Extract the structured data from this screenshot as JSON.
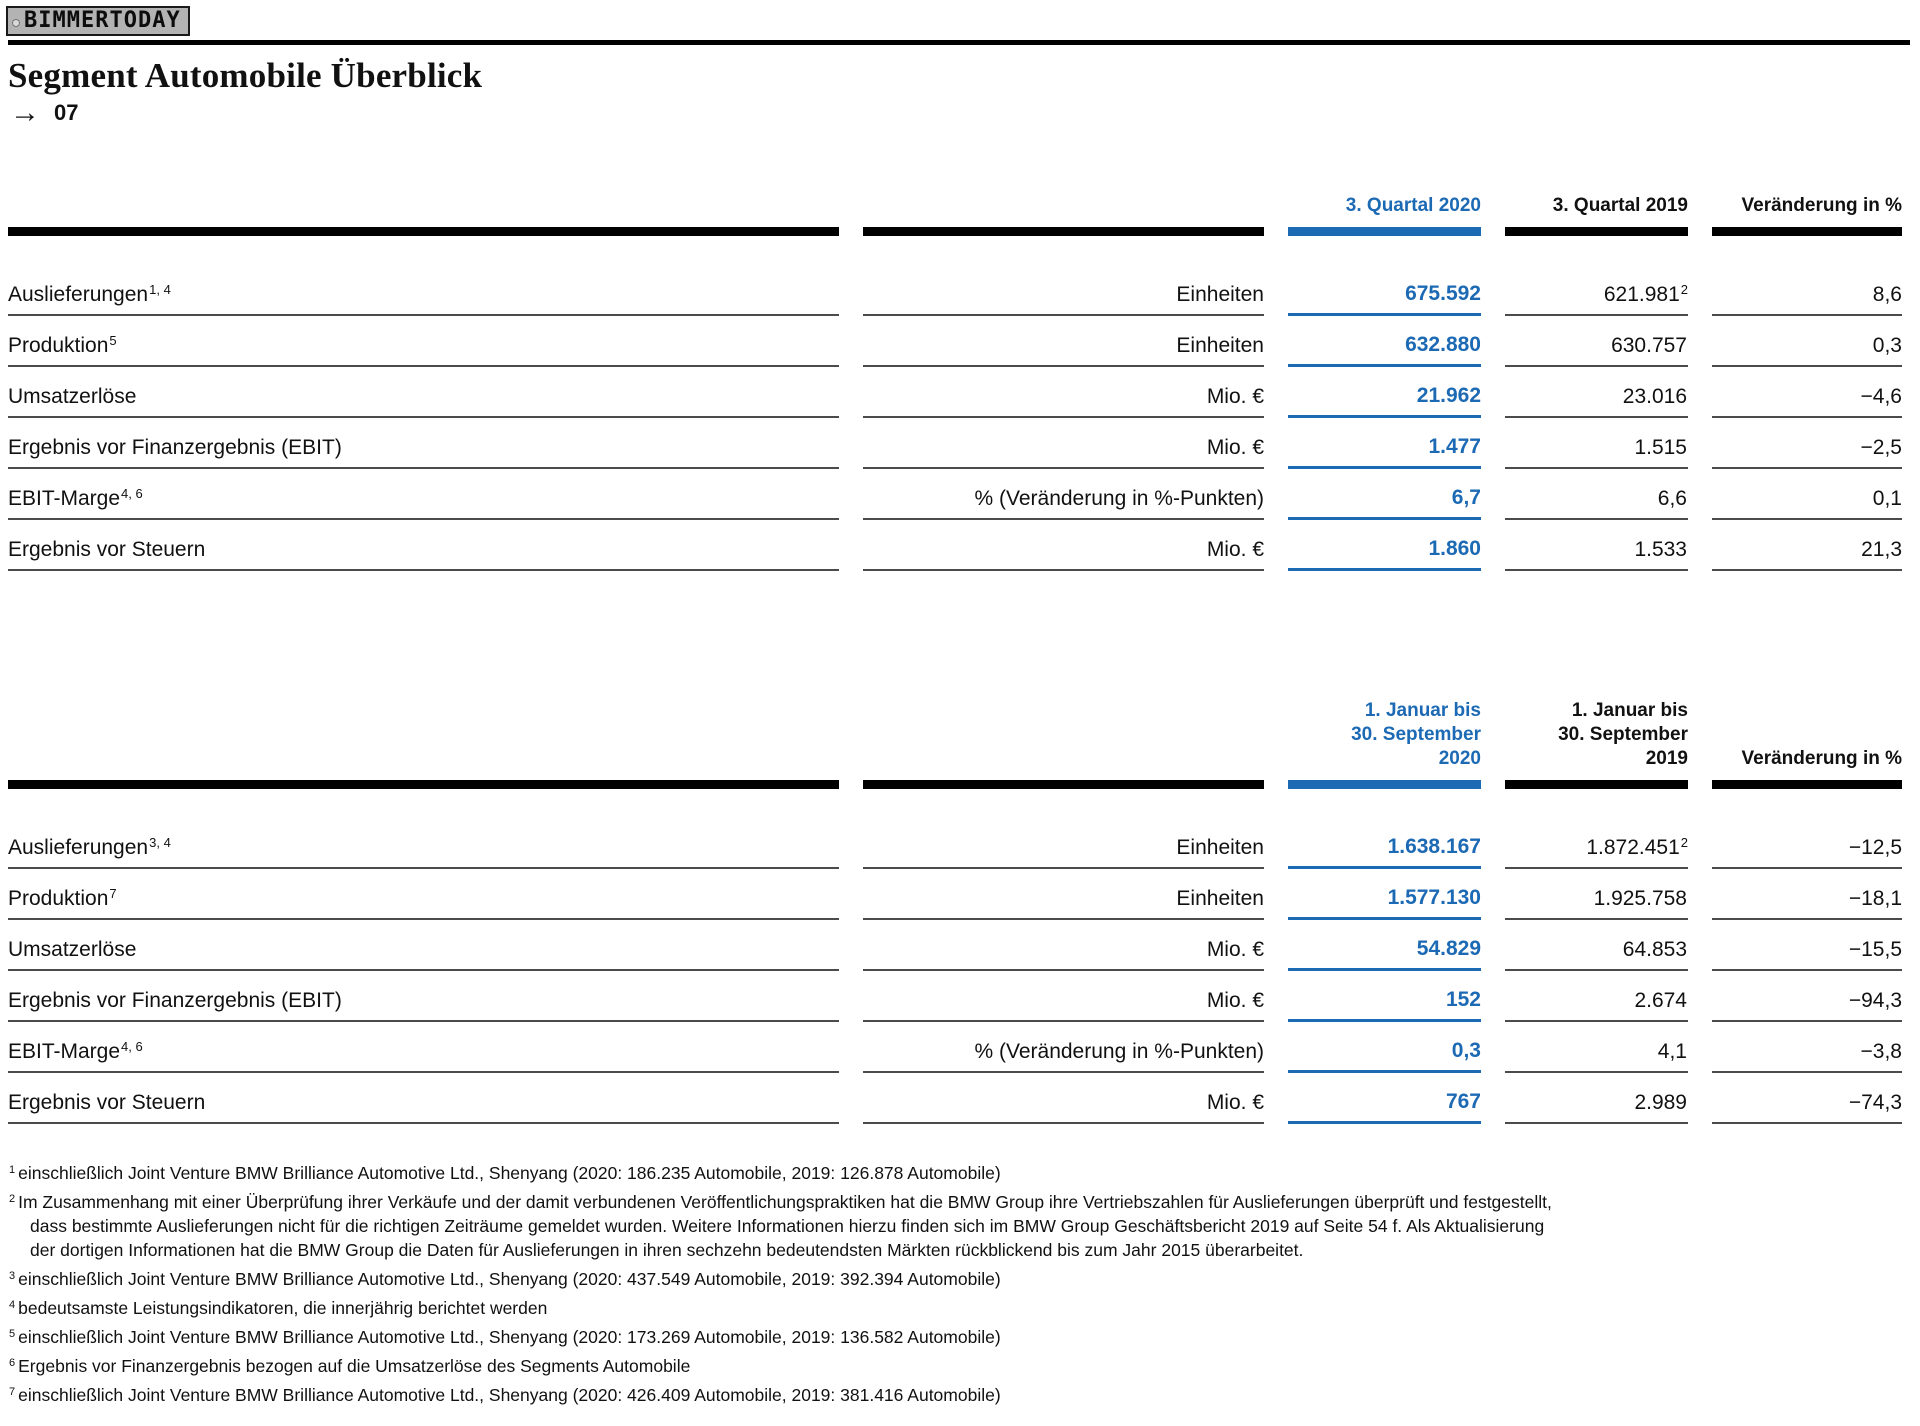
{
  "page": {
    "logo": "BIMMERTODAY",
    "title": "Segment Automobile Überblick",
    "arrow": "→",
    "page_marker": "07"
  },
  "colors": {
    "accent_blue": "#1c69b4",
    "bar_black": "#000000",
    "row_line_gray": "#4b4b4b"
  },
  "table_q3": {
    "headers": {
      "col_2020": "3. Quartal 2020",
      "col_2019": "3. Quartal 2019",
      "col_change": "Veränderung in %"
    },
    "rows": [
      {
        "label": "Auslieferungen",
        "label_sup": "1, 4",
        "unit": "Einheiten",
        "v2020": "675.592",
        "v2019": "621.981",
        "v2019_sup": "2",
        "change": "8,6"
      },
      {
        "label": "Produktion",
        "label_sup": "5",
        "unit": "Einheiten",
        "v2020": "632.880",
        "v2019": "630.757",
        "v2019_sup": "",
        "change": "0,3"
      },
      {
        "label": "Umsatzerlöse",
        "label_sup": "",
        "unit": "Mio. €",
        "v2020": "21.962",
        "v2019": "23.016",
        "v2019_sup": "",
        "change": "−4,6"
      },
      {
        "label": "Ergebnis vor Finanzergebnis (EBIT)",
        "label_sup": "",
        "unit": "Mio. €",
        "v2020": "1.477",
        "v2019": "1.515",
        "v2019_sup": "",
        "change": "−2,5"
      },
      {
        "label": "EBIT-Marge",
        "label_sup": "4, 6",
        "unit": "% (Veränderung in %-Punkten)",
        "v2020": "6,7",
        "v2019": "6,6",
        "v2019_sup": "",
        "change": "0,1"
      },
      {
        "label": "Ergebnis vor Steuern",
        "label_sup": "",
        "unit": "Mio. €",
        "v2020": "1.860",
        "v2019": "1.533",
        "v2019_sup": "",
        "change": "21,3"
      }
    ]
  },
  "table_ytd": {
    "headers": {
      "col_2020_lines": [
        "1. Januar bis",
        "30. September",
        "2020"
      ],
      "col_2019_lines": [
        "1. Januar bis",
        "30. September",
        "2019"
      ],
      "col_change": "Veränderung in %"
    },
    "rows": [
      {
        "label": "Auslieferungen",
        "label_sup": "3, 4",
        "unit": "Einheiten",
        "v2020": "1.638.167",
        "v2019": "1.872.451",
        "v2019_sup": "2",
        "change": "−12,5"
      },
      {
        "label": "Produktion",
        "label_sup": "7",
        "unit": "Einheiten",
        "v2020": "1.577.130",
        "v2019": "1.925.758",
        "v2019_sup": "",
        "change": "−18,1"
      },
      {
        "label": "Umsatzerlöse",
        "label_sup": "",
        "unit": "Mio. €",
        "v2020": "54.829",
        "v2019": "64.853",
        "v2019_sup": "",
        "change": "−15,5"
      },
      {
        "label": "Ergebnis vor Finanzergebnis (EBIT)",
        "label_sup": "",
        "unit": "Mio. €",
        "v2020": "152",
        "v2019": "2.674",
        "v2019_sup": "",
        "change": "−94,3"
      },
      {
        "label": "EBIT-Marge",
        "label_sup": "4, 6",
        "unit": "% (Veränderung in %-Punkten)",
        "v2020": "0,3",
        "v2019": "4,1",
        "v2019_sup": "",
        "change": "−3,8"
      },
      {
        "label": "Ergebnis vor Steuern",
        "label_sup": "",
        "unit": "Mio. €",
        "v2020": "767",
        "v2019": "2.989",
        "v2019_sup": "",
        "change": "−74,3"
      }
    ]
  },
  "footnotes": [
    {
      "sup": "1",
      "text": "einschließlich Joint Venture BMW Brilliance Automotive Ltd., Shenyang (2020: 186.235 Automobile, 2019: 126.878 Automobile)"
    },
    {
      "sup": "2",
      "text": "Im Zusammenhang mit einer Überprüfung ihrer Verkäufe und der damit verbundenen Veröffentlichungspraktiken hat die BMW Group ihre Vertriebszahlen für Auslieferungen überprüft und festgestellt, dass bestimmte Auslieferungen nicht für die richtigen Zeiträume gemeldet wurden. Weitere Informationen hierzu finden sich im BMW Group Geschäftsbericht 2019 auf Seite 54 f. Als Aktualisierung der dortigen Informationen hat die BMW Group die Daten für Auslieferungen in ihren sechzehn bedeutendsten Märkten rückblickend bis zum Jahr 2015 überarbeitet."
    },
    {
      "sup": "3",
      "text": "einschließlich Joint Venture BMW Brilliance Automotive Ltd., Shenyang (2020: 437.549 Automobile, 2019: 392.394 Automobile)"
    },
    {
      "sup": "4",
      "text": "bedeutsamste Leistungsindikatoren, die innerjährig berichtet werden"
    },
    {
      "sup": "5",
      "text": "einschließlich Joint Venture BMW Brilliance Automotive Ltd., Shenyang (2020: 173.269 Automobile, 2019: 136.582 Automobile)"
    },
    {
      "sup": "6",
      "text": "Ergebnis vor Finanzergebnis bezogen auf die Umsatzerlöse des Segments Automobile"
    },
    {
      "sup": "7",
      "text": "einschließlich Joint Venture BMW Brilliance Automotive Ltd., Shenyang (2020: 426.409 Automobile, 2019: 381.416 Automobile)"
    }
  ]
}
